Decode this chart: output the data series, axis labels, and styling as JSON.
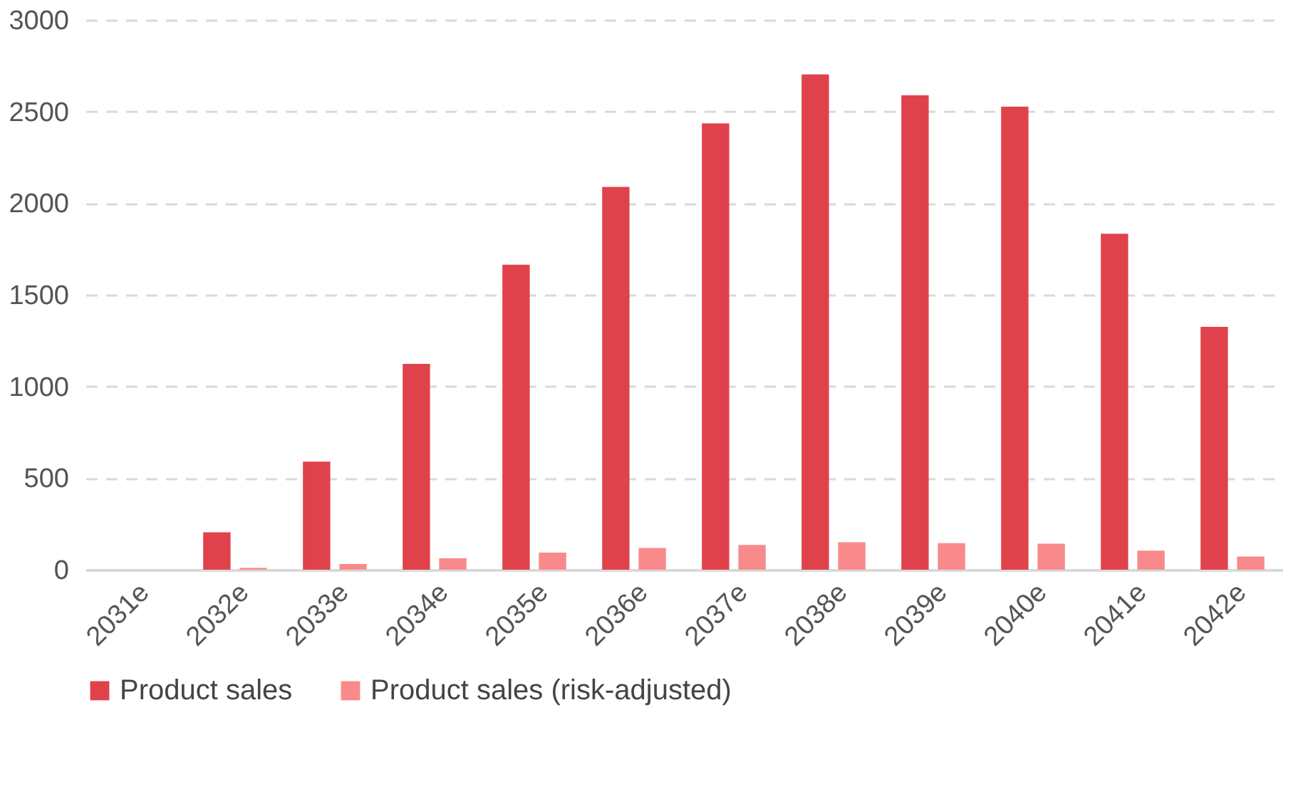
{
  "chart_data": {
    "type": "bar",
    "categories": [
      "2031e",
      "2032e",
      "2033e",
      "2034e",
      "2035e",
      "2036e",
      "2037e",
      "2038e",
      "2039e",
      "2040e",
      "2041e",
      "2042e"
    ],
    "series": [
      {
        "name": "Product sales",
        "color": "#e0424b",
        "values": [
          0,
          204,
          590,
          1123,
          1664,
          2089,
          2436,
          2703,
          2589,
          2527,
          1833,
          1325
        ]
      },
      {
        "name": "Product sales (risk-adjusted)",
        "color": "#f98a8b",
        "values": [
          0,
          10,
          31,
          62,
          93,
          119,
          135,
          150,
          145,
          142,
          104,
          72
        ]
      }
    ],
    "ylim": [
      0,
      3000
    ],
    "yticks": [
      0,
      500,
      1000,
      1500,
      2000,
      2500,
      3000
    ],
    "grid": "y",
    "legend": "bottom"
  }
}
